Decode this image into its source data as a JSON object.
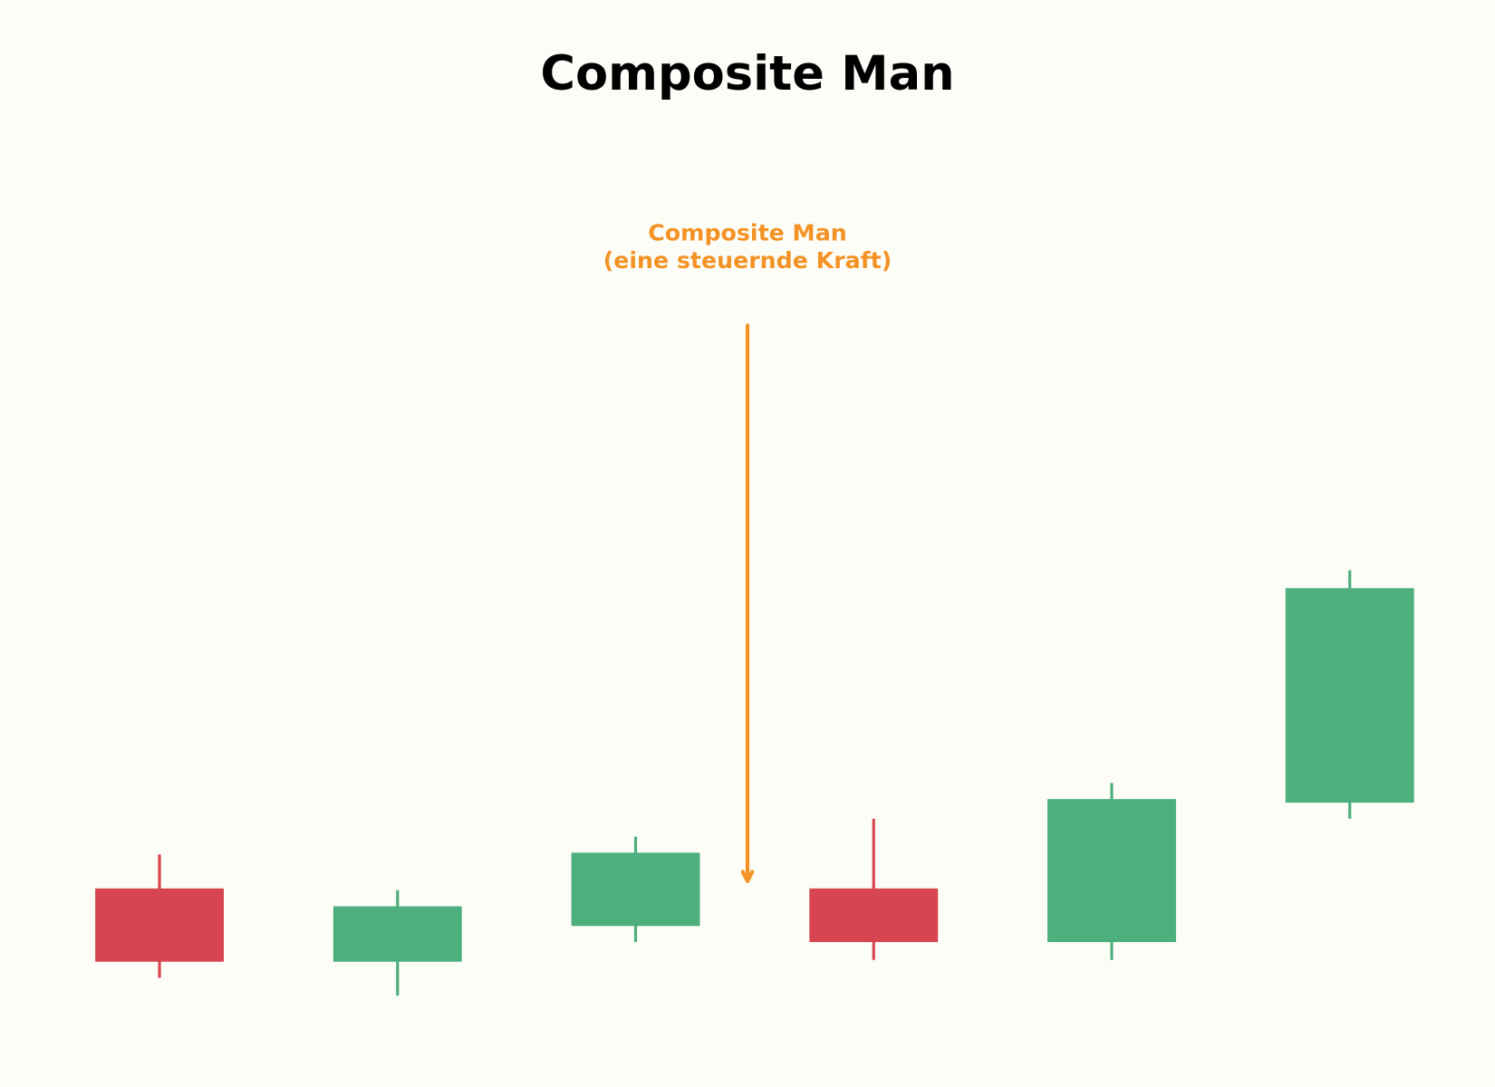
{
  "chart_data": {
    "type": "candlestick",
    "title": "Composite Man",
    "x": [
      0,
      1,
      2,
      3,
      4,
      5
    ],
    "open": [
      10.3,
      6.2,
      8.2,
      10.3,
      7.3,
      15.1
    ],
    "high": [
      12.2,
      10.2,
      13.2,
      14.2,
      16.2,
      28.1
    ],
    "low": [
      5.3,
      4.3,
      7.3,
      6.3,
      6.3,
      14.2
    ],
    "close": [
      6.2,
      9.3,
      12.3,
      7.3,
      15.3,
      27.1
    ],
    "up_color": "#4caf7d",
    "down_color": "#d64550",
    "xlim": [
      -0.67,
      5.61
    ],
    "ylim": [
      0,
      60
    ],
    "annotation": {
      "lines": [
        "Composite Man",
        "(eine steuernde Kraft)"
      ],
      "color": "#f39325",
      "xy": [
        2.47,
        10.7
      ],
      "xytext": [
        2.47,
        41.8
      ]
    }
  }
}
